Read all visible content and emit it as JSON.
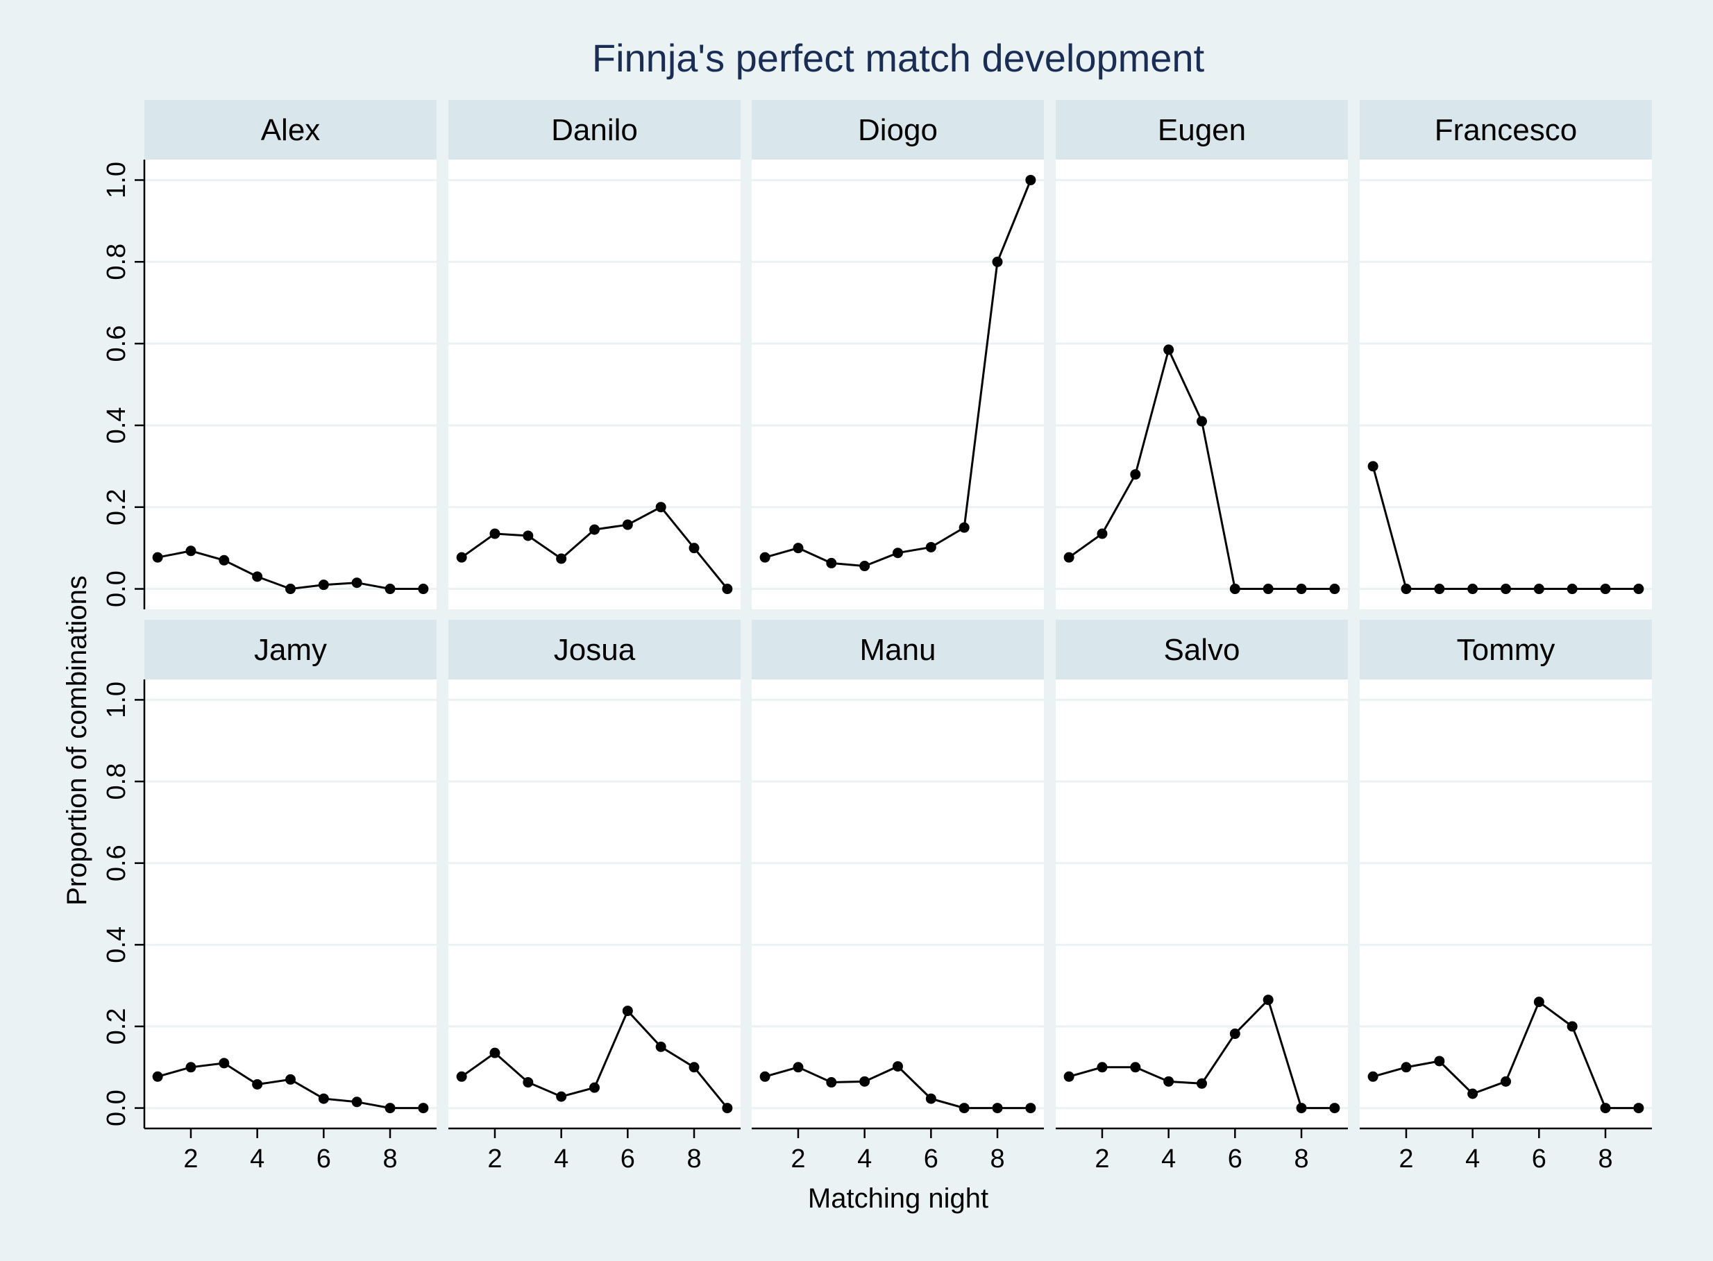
{
  "chart_data": {
    "type": "line",
    "title": "Finnja's perfect match development",
    "xlabel": "Matching night",
    "ylabel": "Proportion of combinations",
    "x": [
      1,
      2,
      3,
      4,
      5,
      6,
      7,
      8,
      9
    ],
    "xticks": [
      2,
      4,
      6,
      8
    ],
    "yticks": [
      0.0,
      0.2,
      0.4,
      0.6,
      0.8,
      1.0
    ],
    "ytick_labels": [
      "0.0",
      "0.2",
      "0.4",
      "0.6",
      "0.8",
      "1.0"
    ],
    "xlim": [
      0.6,
      9.4
    ],
    "ylim": [
      -0.05,
      1.05
    ],
    "grid": true,
    "panels": [
      {
        "name": "Alex",
        "values": [
          0.077,
          0.093,
          0.07,
          0.03,
          0.0,
          0.01,
          0.015,
          0.0,
          0.0
        ]
      },
      {
        "name": "Danilo",
        "values": [
          0.077,
          0.135,
          0.13,
          0.074,
          0.145,
          0.157,
          0.2,
          0.1,
          0.0
        ]
      },
      {
        "name": "Diogo",
        "values": [
          0.077,
          0.1,
          0.063,
          0.056,
          0.088,
          0.102,
          0.15,
          0.8,
          1.0
        ]
      },
      {
        "name": "Eugen",
        "values": [
          0.077,
          0.135,
          0.28,
          0.585,
          0.41,
          0.0,
          0.0,
          0.0,
          0.0
        ]
      },
      {
        "name": "Francesco",
        "values": [
          0.3,
          0.0,
          0.0,
          0.0,
          0.0,
          0.0,
          0.0,
          0.0,
          0.0
        ]
      },
      {
        "name": "Jamy",
        "values": [
          0.077,
          0.1,
          0.11,
          0.058,
          0.07,
          0.023,
          0.015,
          0.0,
          0.0
        ]
      },
      {
        "name": "Josua",
        "values": [
          0.077,
          0.135,
          0.063,
          0.028,
          0.05,
          0.238,
          0.15,
          0.1,
          0.0
        ]
      },
      {
        "name": "Manu",
        "values": [
          0.077,
          0.1,
          0.063,
          0.065,
          0.102,
          0.023,
          0.0,
          0.0,
          0.0
        ]
      },
      {
        "name": "Salvo",
        "values": [
          0.077,
          0.1,
          0.1,
          0.065,
          0.06,
          0.182,
          0.265,
          0.0,
          0.0
        ]
      },
      {
        "name": "Tommy",
        "values": [
          0.077,
          0.1,
          0.115,
          0.035,
          0.065,
          0.26,
          0.2,
          0.0,
          0.0
        ]
      }
    ],
    "colors": {
      "background": "#eaf2f3",
      "plot_bg": "#ffffff",
      "strip_bg": "#d9e6eb",
      "grid": "#eaf2f3",
      "line": "#000000",
      "title": "#1a2e55",
      "text": "#000000"
    }
  }
}
